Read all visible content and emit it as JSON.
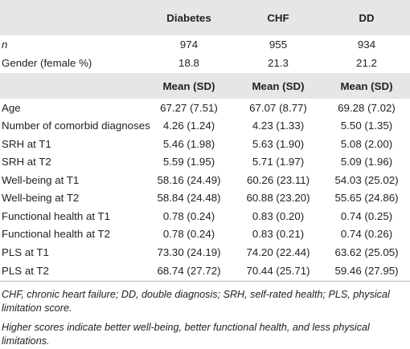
{
  "table": {
    "columns": [
      "Diabetes",
      "CHF",
      "DD"
    ],
    "top_rows": [
      {
        "label": "n",
        "cells": [
          "974",
          "955",
          "934"
        ]
      },
      {
        "label": "Gender (female %)",
        "cells": [
          "18.8",
          "21.3",
          "21.2"
        ]
      }
    ],
    "subheader": [
      "Mean (SD)",
      "Mean (SD)",
      "Mean (SD)"
    ],
    "rows": [
      {
        "label": "Age",
        "cells": [
          "67.27 (7.51)",
          "67.07 (8.77)",
          "69.28 (7.02)"
        ]
      },
      {
        "label": "Number of comorbid diagnoses",
        "cells": [
          "4.26 (1.24)",
          "4.23 (1.33)",
          "5.50 (1.35)"
        ]
      },
      {
        "label": "SRH at T1",
        "cells": [
          "5.46 (1.98)",
          "5.63 (1.90)",
          "5.08 (2.00)"
        ]
      },
      {
        "label": "SRH at T2",
        "cells": [
          "5.59 (1.95)",
          "5.71 (1.97)",
          "5.09 (1.96)"
        ]
      },
      {
        "label": "Well-being at T1",
        "cells": [
          "58.16 (24.49)",
          "60.26 (23.11)",
          "54.03 (25.02)"
        ]
      },
      {
        "label": "Well-being at T2",
        "cells": [
          "58.84 (24.48)",
          "60.88 (23.20)",
          "55.65 (24.86)"
        ]
      },
      {
        "label": "Functional health at T1",
        "cells": [
          "0.78 (0.24)",
          "0.83 (0.20)",
          "0.74 (0.25)"
        ]
      },
      {
        "label": "Functional health at T2",
        "cells": [
          "0.78 (0.24)",
          "0.83 (0.21)",
          "0.74 (0.26)"
        ]
      },
      {
        "label": "PLS at T1",
        "cells": [
          "73.30 (24.19)",
          "74.20 (22.44)",
          "63.62 (25.05)"
        ]
      },
      {
        "label": "PLS at T2",
        "cells": [
          "68.74 (27.72)",
          "70.44 (25.71)",
          "59.46 (27.95)"
        ]
      }
    ]
  },
  "footnotes": [
    "CHF, chronic heart failure; DD, double diagnosis; SRH, self-rated health; PLS, physical limitation score.",
    "Higher scores indicate better well-being, better functional health, and less physical limitations."
  ]
}
